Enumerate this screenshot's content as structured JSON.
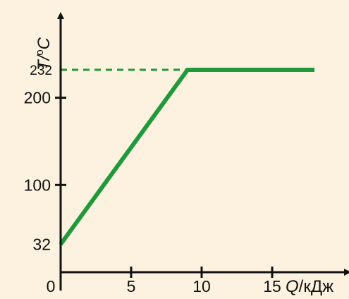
{
  "colors": {
    "background": "#fdf1df",
    "line": "#1e9a3a",
    "axis": "#111111"
  },
  "chart_data": {
    "type": "line",
    "title": "",
    "xlabel": "Q/кДж",
    "ylabel": "T/°C",
    "x_label_parts": {
      "symbol": "Q",
      "unit": "/кДж"
    },
    "y_label_parts": {
      "symbol": "T",
      "unit_prefix": "/",
      "unit_sup": "o",
      "unit_suffix": "C"
    },
    "xlim": [
      0,
      20
    ],
    "ylim": [
      0,
      270
    ],
    "x_ticks": [
      {
        "value": 0,
        "label": "0"
      },
      {
        "value": 5,
        "label": "5"
      },
      {
        "value": 10,
        "label": "10"
      },
      {
        "value": 15,
        "label": "15"
      }
    ],
    "y_ticks": [
      {
        "value": 32,
        "label": "32"
      },
      {
        "value": 100,
        "label": "100"
      },
      {
        "value": 200,
        "label": "200"
      }
    ],
    "annotations": [
      {
        "value": 232,
        "label": "232",
        "style": "dashed"
      }
    ],
    "series": [
      {
        "x": [
          0,
          9,
          18
        ],
        "y": [
          32,
          232,
          232
        ]
      }
    ],
    "grid": false,
    "legend": "none"
  }
}
